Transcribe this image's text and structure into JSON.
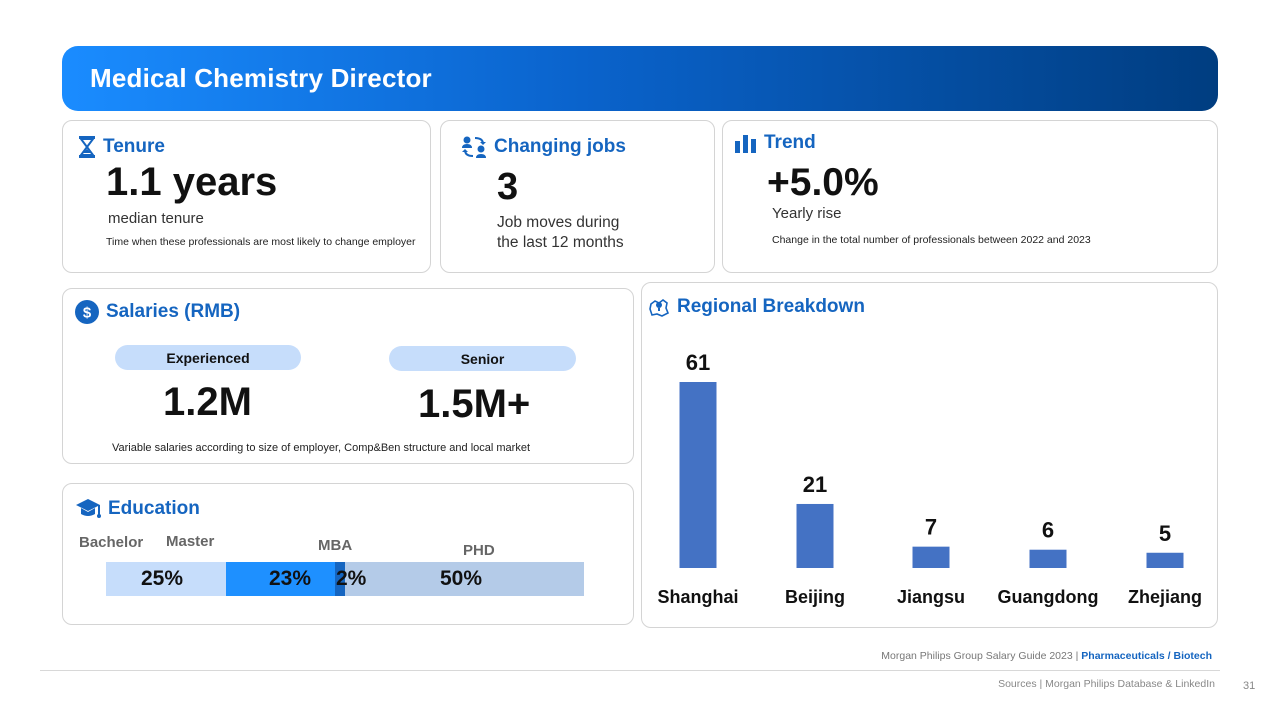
{
  "title": "Medical Chemistry Director",
  "tenure": {
    "label": "Tenure",
    "value": "1.1 years",
    "sub": "median tenure",
    "note": "Time when these professionals are most likely to  change employer"
  },
  "jobs": {
    "label": "Changing jobs",
    "value": "3",
    "sub_line1": "Job moves during",
    "sub_line2": "the last 12 months"
  },
  "trend": {
    "label": "Trend",
    "value": "+5.0%",
    "sub": "Yearly rise",
    "note": "Change in the total number of professionals between 2022 and 2023"
  },
  "salaries": {
    "label": "Salaries (RMB)",
    "experienced_label": "Experienced",
    "experienced_value": "1.2M",
    "senior_label": "Senior",
    "senior_value": "1.5M+",
    "note": "Variable salaries according to size of employer, Comp&Ben structure and local market"
  },
  "education": {
    "label": "Education",
    "segments": [
      {
        "name": "Bachelor",
        "pct_label": "25%",
        "value": 25,
        "color": "#c6ddfb"
      },
      {
        "name": "Master",
        "pct_label": "23%",
        "value": 23,
        "color": "#1e90ff"
      },
      {
        "name": "MBA",
        "pct_label": "2%",
        "value": 2,
        "color": "#1565c0"
      },
      {
        "name": "PHD",
        "pct_label": "50%",
        "value": 50,
        "color": "#b4cbe8"
      }
    ]
  },
  "regional": {
    "label": "Regional Breakdown"
  },
  "chart_data": {
    "type": "bar",
    "title": "Regional Breakdown",
    "categories": [
      "Shanghai",
      "Beijing",
      "Jiangsu",
      "Guangdong",
      "Zhejiang"
    ],
    "values": [
      61,
      21,
      7,
      6,
      5
    ],
    "value_labels": [
      "61",
      "21",
      "7",
      "6",
      "5"
    ],
    "ylim": [
      0,
      61
    ],
    "bar_color": "#4472c4",
    "grid": false
  },
  "footer": {
    "guide": "Morgan Philips Group Salary Guide 2023 |",
    "sector": "Pharmaceuticals / Biotech",
    "sources": "Sources | Morgan Philips Database & LinkedIn",
    "page": "31"
  }
}
